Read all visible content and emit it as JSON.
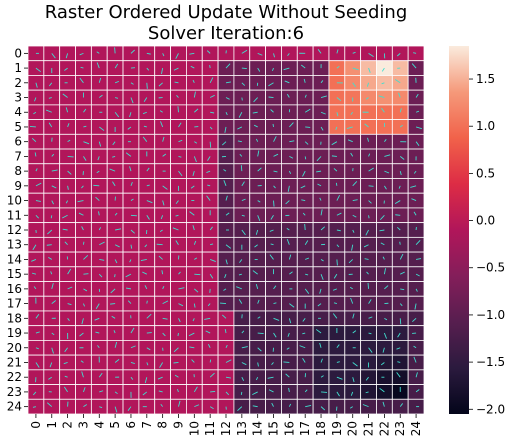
{
  "chart_data": {
    "type": "heatmap",
    "title_line1": "Raster Ordered Update Without Seeding",
    "title_line2": "Solver Iteration:6",
    "rows": 25,
    "cols": 25,
    "x_ticks": [
      "0",
      "1",
      "2",
      "3",
      "4",
      "5",
      "6",
      "7",
      "8",
      "9",
      "10",
      "11",
      "12",
      "13",
      "14",
      "15",
      "16",
      "17",
      "18",
      "19",
      "20",
      "21",
      "22",
      "23",
      "24"
    ],
    "y_ticks": [
      "0",
      "1",
      "2",
      "3",
      "4",
      "5",
      "6",
      "7",
      "8",
      "9",
      "10",
      "11",
      "12",
      "13",
      "14",
      "15",
      "16",
      "17",
      "18",
      "19",
      "20",
      "21",
      "22",
      "23",
      "24"
    ],
    "colorbar": {
      "min": -2.05,
      "max": 1.85,
      "ticks": [
        -2.0,
        -1.5,
        -1.0,
        -0.5,
        0.0,
        0.5,
        1.0,
        1.5
      ],
      "tick_labels": [
        "−2.0",
        "−1.5",
        "−1.0",
        "−0.5",
        "0.0",
        "0.5",
        "1.0",
        "1.5"
      ],
      "colormap": "rocket"
    },
    "base_value": -0.1,
    "regions": [
      {
        "name": "source",
        "rows": [
          1,
          5
        ],
        "cols": [
          19,
          23
        ],
        "value": 1.0,
        "peak": 1.85,
        "peak_cell": [
          1,
          22
        ]
      },
      {
        "name": "upper-right-field",
        "rows": [
          1,
          11
        ],
        "cols": [
          12,
          24
        ],
        "value": -0.85,
        "except_region": "source"
      },
      {
        "name": "left-boundary-strip",
        "rows": [
          6,
          11
        ],
        "cols": [
          12,
          12
        ],
        "value": -1.1
      },
      {
        "name": "mid-right-field",
        "rows": [
          12,
          17
        ],
        "cols": [
          12,
          24
        ],
        "value": -1.1
      },
      {
        "name": "lower-right-field",
        "rows": [
          18,
          24
        ],
        "cols": [
          13,
          24
        ],
        "value": -1.25
      },
      {
        "name": "sink",
        "rows": [
          19,
          23
        ],
        "cols": [
          18,
          23
        ],
        "value": -1.55,
        "peak": -2.0,
        "peak_cell": [
          23,
          23
        ]
      }
    ],
    "grid": true,
    "vector_field": true,
    "vector_color": "#40e0d0"
  }
}
